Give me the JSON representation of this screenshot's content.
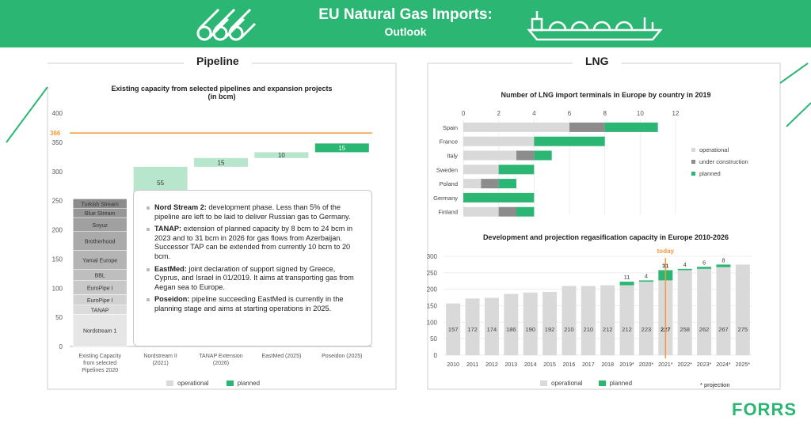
{
  "header": {
    "title": "EU Natural Gas Imports:",
    "subtitle": "Outlook"
  },
  "sections": {
    "pipeline": "Pipeline",
    "lng": "LNG"
  },
  "pipeline_info": [
    {
      "bold": "Nord Stream 2:",
      "text": " development phase. Less than 5% of the pipeline are left to be laid to deliver Russian gas to Germany."
    },
    {
      "bold": "TANAP:",
      "text": " extension of planned capacity by 8 bcm to 24 bcm in 2023 and to 31 bcm in 2026 for gas flows from Azerbaijan. Successor TAP can be extended from currently 10 bcm to 20 bcm."
    },
    {
      "bold": "EastMed:",
      "text": " joint declaration of support signed by Greece, Cyprus, and Israel in 01/2019. It aims at transporting gas from Aegan sea to Europe."
    },
    {
      "bold": "Poseidon:",
      "text": " pipeline succeeding EastMed is currently in the planning stage and aims at starting operations in 2025."
    }
  ],
  "legends": {
    "operational": "operational",
    "planned": "planned",
    "under_construction": "under construction"
  },
  "projection_note": "* projection",
  "logo": "FORRS",
  "colors": {
    "green": "#2bb673",
    "light_green": "#b8e6cd",
    "grey": "#d9d9d9",
    "dark_grey": "#8c8c8c",
    "orange": "#f29a3d"
  },
  "chart_data": [
    {
      "type": "bar",
      "title": "Existing capacity from selected pipelines and expansion projects",
      "subtitle": "(in bcm)",
      "categories": [
        "Existing Capacity from selected Pipelines 2020",
        "Nordstream II (2021)",
        "TANAP Extension (2026)",
        "EastMed (2025)",
        "Poseidon (2025)"
      ],
      "ylim": [
        0,
        400
      ],
      "yticks": [
        0,
        50,
        100,
        150,
        200,
        250,
        300,
        350,
        400
      ],
      "reference_line": {
        "value": 366,
        "label": "366"
      },
      "stack": [
        {
          "name": "Nordstream 1",
          "value": 55
        },
        {
          "name": "TANAP",
          "value": 16
        },
        {
          "name": "EuroPipe I",
          "value": 18
        },
        {
          "name": "EuroPipe I",
          "value": 24
        },
        {
          "name": "BBL",
          "value": 19
        },
        {
          "name": "Yamal Europe",
          "value": 33
        },
        {
          "name": "Brotherhood",
          "value": 32
        },
        {
          "name": "Soyuz",
          "value": 24
        },
        {
          "name": "Blue Stream",
          "value": 16
        },
        {
          "name": "Turkish Stream",
          "value": 16
        }
      ],
      "waterfall": [
        {
          "label": "55",
          "value": 55,
          "status": "planned-light"
        },
        {
          "label": "15",
          "value": 15,
          "status": "planned-light"
        },
        {
          "label": "10",
          "value": 10,
          "status": "planned-light"
        },
        {
          "label": "15",
          "value": 15,
          "status": "planned"
        }
      ]
    },
    {
      "type": "bar",
      "title": "Number of LNG import terminals in Europe by country in 2019",
      "orientation": "horizontal",
      "categories": [
        "Spain",
        "France",
        "Italy",
        "Sweden",
        "Poland",
        "Germany",
        "Finland"
      ],
      "xlim": [
        0,
        12
      ],
      "xticks": [
        0,
        2,
        4,
        6,
        8,
        10,
        12
      ],
      "series": [
        {
          "name": "operational",
          "values": [
            6,
            4,
            3,
            2,
            1,
            0,
            2
          ]
        },
        {
          "name": "under construction",
          "values": [
            2,
            0,
            1,
            0,
            1,
            0,
            1
          ]
        },
        {
          "name": "planned",
          "values": [
            3,
            4,
            1,
            2,
            1,
            4,
            1
          ]
        }
      ]
    },
    {
      "type": "bar",
      "title": "Development and projection regasification capacity in Europe 2010-2026",
      "categories": [
        "2010",
        "2011",
        "2012",
        "2013",
        "2014",
        "2015",
        "2016",
        "2017",
        "2018",
        "2019*",
        "2020*",
        "2021*",
        "2022*",
        "2023*",
        "2024*",
        "2025*"
      ],
      "ylim": [
        0,
        300
      ],
      "yticks": [
        0,
        50,
        100,
        150,
        200,
        250,
        300
      ],
      "series": [
        {
          "name": "operational",
          "values": [
            157,
            172,
            174,
            186,
            190,
            192,
            210,
            210,
            212,
            212,
            223,
            227,
            258,
            262,
            267,
            275
          ]
        },
        {
          "name": "planned",
          "values": [
            null,
            null,
            null,
            null,
            null,
            null,
            null,
            null,
            null,
            11,
            4,
            31,
            4,
            6,
            8,
            null
          ]
        }
      ],
      "today_marker": {
        "category": "2021*",
        "label": "today"
      }
    }
  ]
}
